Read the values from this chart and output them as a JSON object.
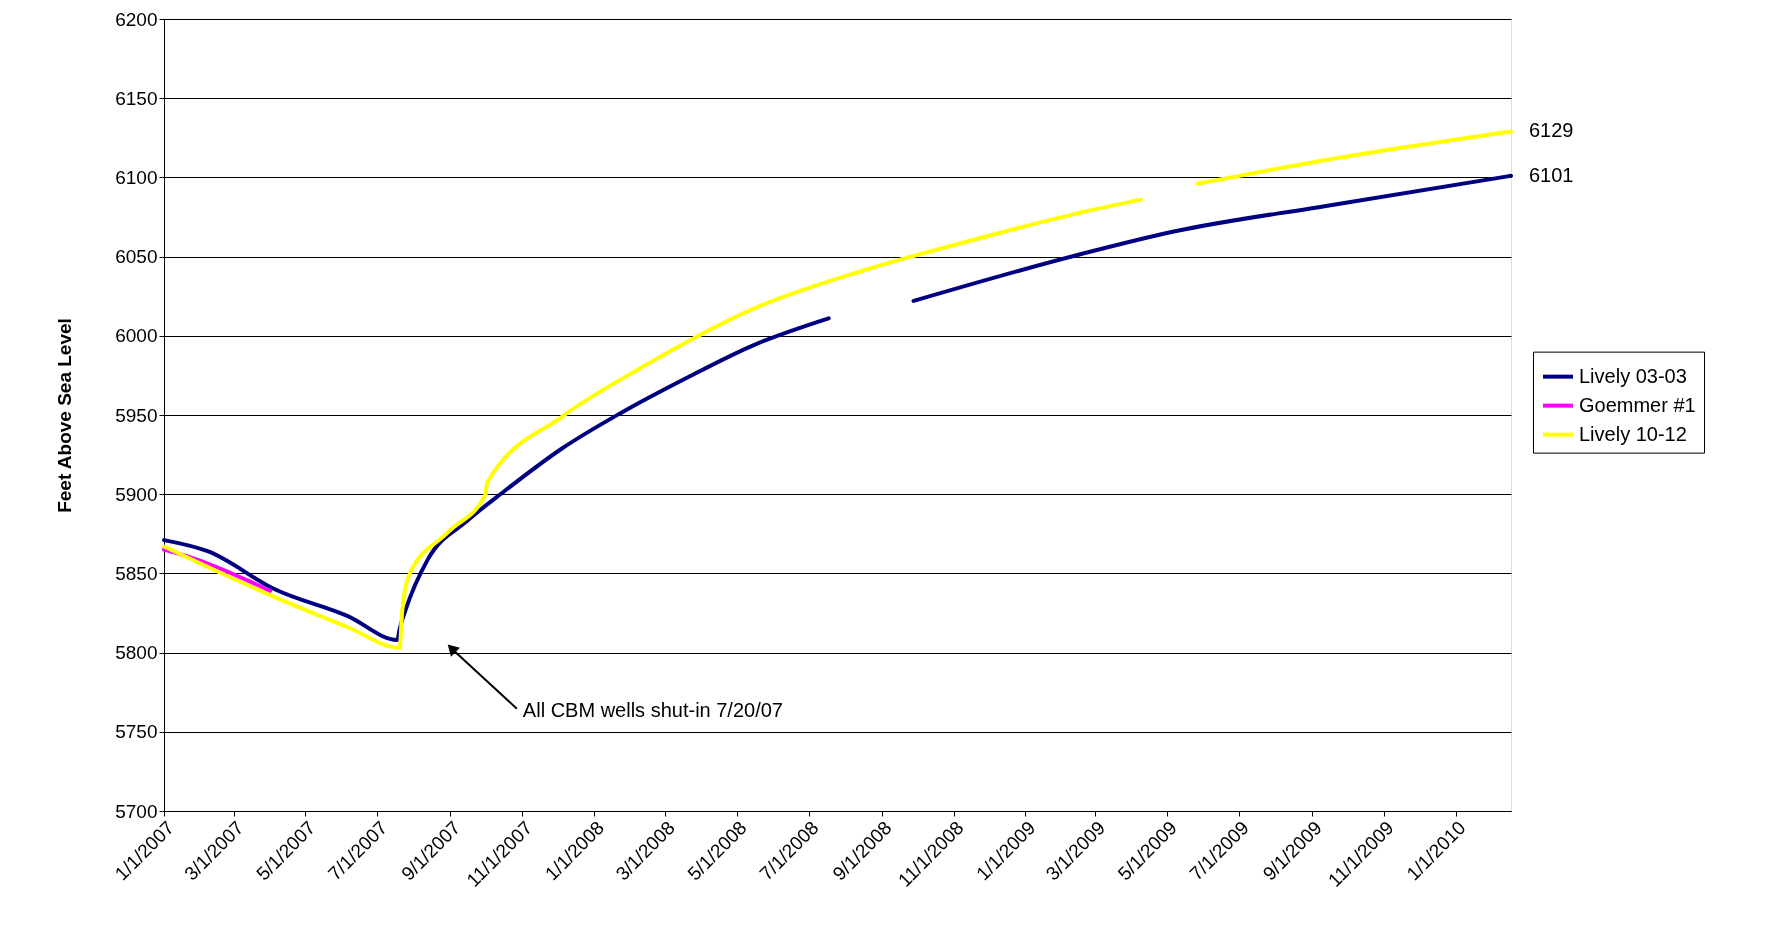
{
  "chart_data": {
    "type": "line",
    "ylabel": "Feet Above Sea Level",
    "xlim": [
      "2007-01-01",
      "2010-02-17"
    ],
    "ylim": [
      5700,
      6200
    ],
    "yticks": [
      5700,
      5750,
      5800,
      5850,
      5900,
      5950,
      6000,
      6050,
      6100,
      6150,
      6200
    ],
    "xticks": [
      {
        "value": "2007-01-01",
        "label": "1/1/2007"
      },
      {
        "value": "2007-03-01",
        "label": "3/1/2007"
      },
      {
        "value": "2007-05-01",
        "label": "5/1/2007"
      },
      {
        "value": "2007-07-01",
        "label": "7/1/2007"
      },
      {
        "value": "2007-09-01",
        "label": "9/1/2007"
      },
      {
        "value": "2007-11-01",
        "label": "11/1/2007"
      },
      {
        "value": "2008-01-01",
        "label": "1/1/2008"
      },
      {
        "value": "2008-03-01",
        "label": "3/1/2008"
      },
      {
        "value": "2008-05-01",
        "label": "5/1/2008"
      },
      {
        "value": "2008-07-01",
        "label": "7/1/2008"
      },
      {
        "value": "2008-09-01",
        "label": "9/1/2008"
      },
      {
        "value": "2008-11-01",
        "label": "11/1/2008"
      },
      {
        "value": "2009-01-01",
        "label": "1/1/2009"
      },
      {
        "value": "2009-03-01",
        "label": "3/1/2009"
      },
      {
        "value": "2009-05-01",
        "label": "5/1/2009"
      },
      {
        "value": "2009-07-01",
        "label": "7/1/2009"
      },
      {
        "value": "2009-09-01",
        "label": "9/1/2009"
      },
      {
        "value": "2009-11-01",
        "label": "11/1/2009"
      },
      {
        "value": "2010-01-01",
        "label": "1/1/2010"
      }
    ],
    "grid": "y",
    "legend": "right",
    "marker": "none",
    "line_style": "solid",
    "series": [
      {
        "name": "Lively 03-03",
        "color": "#000080",
        "x": [
          "2007-01-01",
          "2007-02-07",
          "2007-04-05",
          "2007-06-06",
          "2007-07-18",
          "2007-07-20",
          "2007-07-25",
          "2007-08-13",
          "2007-09-15",
          "2007-10-17",
          "2007-12-05",
          "2008-01-23",
          "2008-03-21",
          "2008-05-15",
          "2008-07-18",
          "2008-08-15",
          "2008-09-28",
          "2009-02-14",
          "2009-05-08",
          "2009-09-13",
          "2010-02-17"
        ],
        "values": [
          5871,
          5864,
          5840,
          5823,
          5808,
          5815,
          5827,
          5859,
          5883,
          5902,
          5929,
          5951,
          5974,
          5994,
          6011,
          null,
          6022,
          6051,
          6066,
          6082,
          6101
        ]
      },
      {
        "name": "Goemmer #1",
        "color": "#ff00ff",
        "x": [
          "2007-01-01",
          "2007-01-24",
          "2007-04-01"
        ],
        "values": [
          5865,
          5860,
          5839
        ]
      },
      {
        "name": "Lively 10-12",
        "color": "#ffff00",
        "x": [
          "2007-01-01",
          "2007-04-05",
          "2007-06-06",
          "2007-07-20",
          "2007-07-22",
          "2007-07-28",
          "2007-08-30",
          "2007-10-01",
          "2007-10-02",
          "2007-12-05",
          "2008-02-08",
          "2008-05-15",
          "2008-08-20",
          "2008-11-15",
          "2009-02-24",
          "2009-04-09",
          "2009-05-01",
          "2009-05-27",
          "2009-09-13",
          "2010-02-17"
        ],
        "values": [
          5867,
          5835,
          5816,
          5803,
          5825,
          5849,
          5876,
          5900,
          5907,
          5949,
          5979,
          6017,
          6042,
          6060,
          6079,
          6086,
          null,
          6096,
          6111,
          6129
        ]
      }
    ],
    "annotations": [
      "All CBM wells shut-in 7/20/07",
      {
        "text": "6129",
        "x": "2010-02-17",
        "y": 6129
      },
      {
        "text": "6101",
        "x": "2010-02-17",
        "y": 6101
      }
    ]
  }
}
